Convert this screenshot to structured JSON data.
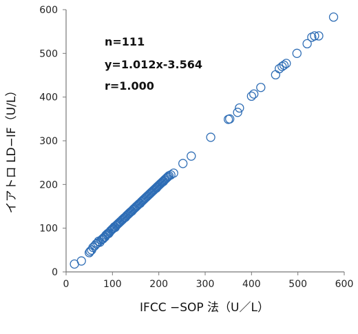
{
  "chart_data": {
    "type": "scatter",
    "xlabel": "IFCC −SOP 法（U／L）",
    "ylabel": "イアトロ LD−IF（U/L）",
    "xlim": [
      0,
      600
    ],
    "ylim": [
      0,
      600
    ],
    "xticks": [
      0,
      100,
      200,
      300,
      400,
      500,
      600
    ],
    "yticks": [
      0,
      100,
      200,
      300,
      400,
      500,
      600
    ],
    "annotations": [
      "n=111",
      "y=1.012x-3.564",
      "r=1.000"
    ],
    "marker_color": "#2e6db5",
    "points": [
      [
        18,
        18
      ],
      [
        33,
        25
      ],
      [
        50,
        44
      ],
      [
        52,
        47
      ],
      [
        55,
        50
      ],
      [
        58,
        56
      ],
      [
        62,
        60
      ],
      [
        65,
        64
      ],
      [
        68,
        66
      ],
      [
        70,
        70
      ],
      [
        73,
        68
      ],
      [
        76,
        73
      ],
      [
        78,
        75
      ],
      [
        80,
        76
      ],
      [
        82,
        79
      ],
      [
        84,
        80
      ],
      [
        86,
        84
      ],
      [
        88,
        86
      ],
      [
        90,
        88
      ],
      [
        92,
        88
      ],
      [
        94,
        91
      ],
      [
        96,
        94
      ],
      [
        98,
        96
      ],
      [
        100,
        98
      ],
      [
        101,
        99
      ],
      [
        102,
        100
      ],
      [
        104,
        103
      ],
      [
        106,
        102
      ],
      [
        108,
        106
      ],
      [
        110,
        108
      ],
      [
        112,
        110
      ],
      [
        114,
        112
      ],
      [
        116,
        114
      ],
      [
        118,
        116
      ],
      [
        120,
        118
      ],
      [
        122,
        120
      ],
      [
        124,
        122
      ],
      [
        126,
        124
      ],
      [
        128,
        125
      ],
      [
        130,
        128
      ],
      [
        132,
        130
      ],
      [
        134,
        132
      ],
      [
        136,
        134
      ],
      [
        138,
        136
      ],
      [
        140,
        138
      ],
      [
        142,
        139
      ],
      [
        144,
        142
      ],
      [
        146,
        144
      ],
      [
        148,
        146
      ],
      [
        150,
        148
      ],
      [
        152,
        150
      ],
      [
        154,
        152
      ],
      [
        156,
        154
      ],
      [
        158,
        156
      ],
      [
        160,
        157
      ],
      [
        162,
        160
      ],
      [
        164,
        162
      ],
      [
        166,
        164
      ],
      [
        168,
        166
      ],
      [
        170,
        168
      ],
      [
        172,
        170
      ],
      [
        174,
        172
      ],
      [
        176,
        174
      ],
      [
        178,
        176
      ],
      [
        180,
        178
      ],
      [
        182,
        180
      ],
      [
        184,
        182
      ],
      [
        186,
        184
      ],
      [
        188,
        186
      ],
      [
        190,
        188
      ],
      [
        192,
        190
      ],
      [
        194,
        192
      ],
      [
        196,
        194
      ],
      [
        198,
        196
      ],
      [
        200,
        198
      ],
      [
        202,
        200
      ],
      [
        204,
        202
      ],
      [
        206,
        204
      ],
      [
        208,
        206
      ],
      [
        210,
        207
      ],
      [
        212,
        210
      ],
      [
        214,
        212
      ],
      [
        216,
        214
      ],
      [
        218,
        216
      ],
      [
        220,
        218
      ],
      [
        222,
        220
      ],
      [
        226,
        222
      ],
      [
        232,
        226
      ],
      [
        252,
        248
      ],
      [
        270,
        265
      ],
      [
        312,
        308
      ],
      [
        350,
        349
      ],
      [
        353,
        350
      ],
      [
        370,
        365
      ],
      [
        374,
        375
      ],
      [
        400,
        402
      ],
      [
        405,
        407
      ],
      [
        420,
        422
      ],
      [
        452,
        451
      ],
      [
        460,
        465
      ],
      [
        466,
        470
      ],
      [
        470,
        473
      ],
      [
        475,
        477
      ],
      [
        498,
        500
      ],
      [
        520,
        522
      ],
      [
        530,
        537
      ],
      [
        536,
        540
      ],
      [
        545,
        540
      ],
      [
        577,
        583
      ],
      [
        210,
        208
      ],
      [
        195,
        192
      ]
    ]
  }
}
